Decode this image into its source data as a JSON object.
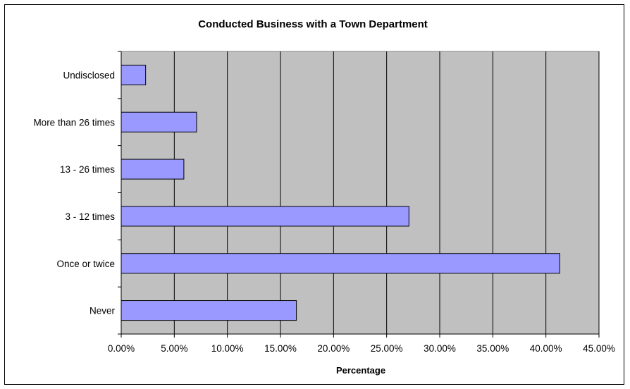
{
  "chart_data": {
    "type": "bar",
    "orientation": "horizontal",
    "title": "Conducted Business with a Town Department",
    "xlabel": "Percentage",
    "ylabel": "",
    "categories": [
      "Undisclosed",
      "More than 26 times",
      "13 - 26 times",
      "3 - 12 times",
      "Once or twice",
      "Never"
    ],
    "values": [
      2.3,
      7.1,
      5.9,
      27.1,
      41.3,
      16.5
    ],
    "xlim": [
      0,
      45
    ],
    "xticks": [
      "0.00%",
      "5.00%",
      "10.00%",
      "15.00%",
      "20.00%",
      "25.00%",
      "30.00%",
      "35.00%",
      "40.00%",
      "45.00%"
    ],
    "grid": true,
    "plot_background": "#c0c0c0",
    "bar_color": "#9999ff",
    "bar_border": "#000000",
    "legend": "none"
  }
}
